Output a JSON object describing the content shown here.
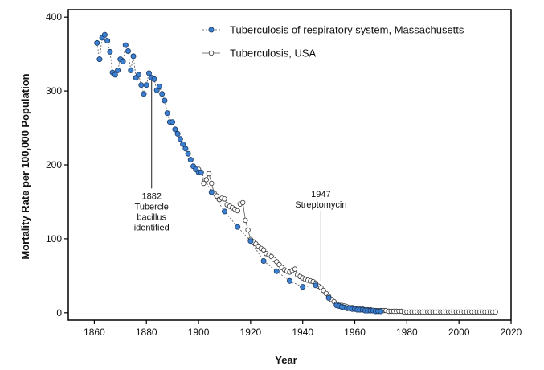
{
  "chart_data": {
    "type": "scatter",
    "xlabel": "Year",
    "ylabel": "Mortality Rate per 100,000 Population",
    "xlim": [
      1850,
      2020
    ],
    "ylim": [
      -10,
      410
    ],
    "x_ticks": [
      1860,
      1880,
      1900,
      1920,
      1940,
      1960,
      1980,
      2000,
      2020
    ],
    "y_ticks": [
      0,
      100,
      200,
      300,
      400
    ],
    "grid": false,
    "legend_position": "top-right",
    "colors": {
      "ma_fill": "#3d7fcf",
      "ma_stroke": "#1a3a66",
      "us_fill": "#ffffff",
      "us_stroke": "#333333",
      "line": "#555555"
    },
    "series": [
      {
        "name": "Tuberculosis of respiratory system, Massachusetts",
        "marker": "filled",
        "x": [
          1861,
          1862,
          1863,
          1864,
          1865,
          1866,
          1867,
          1868,
          1869,
          1870,
          1871,
          1872,
          1873,
          1874,
          1875,
          1876,
          1877,
          1878,
          1879,
          1880,
          1881,
          1882,
          1883,
          1884,
          1885,
          1886,
          1887,
          1888,
          1889,
          1890,
          1891,
          1892,
          1893,
          1894,
          1895,
          1896,
          1897,
          1898,
          1899,
          1900,
          1901,
          1905,
          1910,
          1915,
          1920,
          1925,
          1930,
          1935,
          1940,
          1945,
          1950,
          1953,
          1954,
          1955,
          1956,
          1957,
          1958,
          1959,
          1960,
          1961,
          1962,
          1963,
          1964,
          1965,
          1966,
          1967,
          1968,
          1969,
          1970
        ],
        "y": [
          365,
          343,
          372,
          376,
          368,
          353,
          325,
          322,
          328,
          343,
          340,
          362,
          354,
          328,
          347,
          318,
          322,
          308,
          296,
          308,
          324,
          318,
          316,
          301,
          306,
          296,
          287,
          270,
          258,
          258,
          248,
          242,
          235,
          228,
          222,
          215,
          207,
          198,
          194,
          190,
          190,
          163,
          137,
          116,
          97,
          70,
          56,
          43,
          35,
          37,
          20,
          10,
          9,
          8,
          7,
          6,
          6,
          5,
          5,
          4,
          4,
          4,
          3,
          3,
          3,
          3,
          2,
          2,
          2
        ]
      },
      {
        "name": "Tuberculosis, USA",
        "marker": "open",
        "x": [
          1900,
          1901,
          1902,
          1903,
          1904,
          1905,
          1906,
          1907,
          1908,
          1909,
          1910,
          1911,
          1912,
          1913,
          1914,
          1915,
          1916,
          1917,
          1918,
          1919,
          1920,
          1921,
          1922,
          1923,
          1924,
          1925,
          1926,
          1927,
          1928,
          1929,
          1930,
          1931,
          1932,
          1933,
          1934,
          1935,
          1936,
          1937,
          1938,
          1939,
          1940,
          1941,
          1942,
          1943,
          1944,
          1945,
          1946,
          1947,
          1948,
          1949,
          1950,
          1951,
          1952,
          1953,
          1954,
          1955,
          1956,
          1957,
          1958,
          1959,
          1960,
          1961,
          1962,
          1963,
          1964,
          1965,
          1966,
          1967,
          1968,
          1969,
          1970,
          1971,
          1972,
          1973,
          1974,
          1975,
          1976,
          1977,
          1978,
          1979,
          1980,
          1981,
          1982,
          1983,
          1984,
          1985,
          1986,
          1987,
          1988,
          1989,
          1990,
          1991,
          1992,
          1993,
          1994,
          1995,
          1996,
          1997,
          1998,
          1999,
          2000,
          2001,
          2002,
          2003,
          2004,
          2005,
          2006,
          2007,
          2008,
          2009,
          2010,
          2011,
          2012,
          2013,
          2014
        ],
        "y": [
          194,
          190,
          175,
          180,
          188,
          175,
          162,
          158,
          153,
          155,
          154,
          146,
          144,
          142,
          140,
          138,
          147,
          149,
          125,
          112,
          99,
          96,
          93,
          90,
          87,
          85,
          80,
          78,
          76,
          72,
          69,
          65,
          61,
          58,
          56,
          55,
          57,
          59,
          51,
          49,
          47,
          45,
          44,
          43,
          42,
          40,
          36,
          34,
          30,
          26,
          22,
          18,
          15,
          12,
          10,
          10,
          9,
          8,
          7,
          7,
          6,
          5,
          5,
          5,
          4,
          4,
          4,
          3,
          3,
          3,
          3,
          3,
          3,
          2,
          2,
          2,
          2,
          2,
          2,
          1,
          1,
          1,
          1,
          1,
          1,
          1,
          1,
          1,
          1,
          1,
          1,
          1,
          1,
          1,
          1,
          1,
          1,
          1,
          1,
          1,
          1,
          1,
          1,
          1,
          1,
          1,
          1,
          1,
          1,
          1,
          1,
          1,
          1,
          1,
          1
        ]
      }
    ],
    "annotations": [
      {
        "x": 1882,
        "y": 318,
        "y_end": 168,
        "lines": [
          "1882",
          "Tubercle",
          "bacillus",
          "identified"
        ]
      },
      {
        "x": 1947,
        "y": 43,
        "y_end": 138,
        "lines": [
          "1947",
          "Streptomycin"
        ]
      }
    ]
  }
}
